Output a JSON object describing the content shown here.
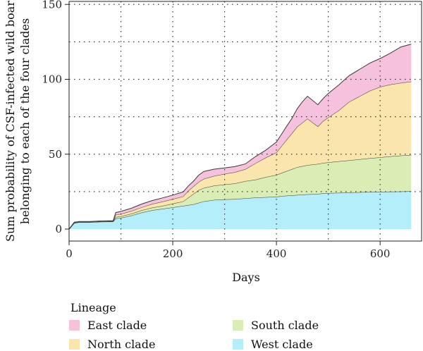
{
  "chart_data": {
    "type": "area",
    "stacked": true,
    "xlabel": "Days",
    "ylabel_line1": "Sum probability of CSF-infected wild boar",
    "ylabel_line2": "belonging to each of the four clades",
    "xlim": [
      0,
      680
    ],
    "ylim": [
      -8,
      152
    ],
    "x_ticks": [
      0,
      200,
      400,
      600
    ],
    "y_ticks": [
      0,
      50,
      100,
      150
    ],
    "grid": true,
    "grid_style": "dotted",
    "x_grid": [
      100,
      200,
      300,
      400,
      500,
      600
    ],
    "y_grid": [
      25,
      50,
      75,
      100,
      125,
      150
    ],
    "legend_title": "Lineage",
    "legend_position": "bottom",
    "x": [
      0,
      10,
      20,
      40,
      60,
      85,
      90,
      100,
      120,
      140,
      160,
      180,
      200,
      220,
      230,
      240,
      250,
      260,
      280,
      300,
      320,
      340,
      360,
      380,
      400,
      410,
      420,
      430,
      440,
      450,
      460,
      480,
      490,
      500,
      520,
      540,
      560,
      580,
      600,
      620,
      640,
      660
    ],
    "series": [
      {
        "name": "West clade",
        "color": "#b3eefa",
        "values": [
          0,
          4,
          4.5,
          4.5,
          4.8,
          5,
          7,
          7.5,
          9,
          11,
          12.5,
          13.5,
          14.5,
          15.5,
          16,
          16.5,
          17.5,
          18.5,
          19.5,
          19.8,
          20,
          20.5,
          21,
          21.3,
          21.6,
          22,
          22.3,
          22.5,
          22.8,
          23,
          23.2,
          23.5,
          23.8,
          24,
          24.2,
          24.4,
          24.6,
          24.8,
          24.9,
          25,
          25.1,
          25.2
        ]
      },
      {
        "name": "South clade",
        "color": "#d9edb5",
        "values": [
          0,
          0.2,
          0.2,
          0.2,
          0.2,
          0.2,
          1,
          1,
          1.2,
          1.5,
          1.8,
          2,
          2.5,
          3,
          5,
          7,
          8.5,
          9,
          9.5,
          10,
          10.5,
          11.5,
          12,
          13.5,
          14.5,
          15.5,
          16.5,
          17.5,
          18.5,
          19,
          19.5,
          20,
          20.3,
          20.5,
          21,
          21.5,
          22,
          22.5,
          23,
          23.5,
          24,
          24.3
        ]
      },
      {
        "name": "North clade",
        "color": "#fae6ad",
        "values": [
          0,
          0.2,
          0.2,
          0.2,
          0.2,
          0.2,
          1.5,
          1.6,
          1.8,
          2,
          2.4,
          2.8,
          3,
          3.3,
          4.5,
          5,
          5.5,
          6,
          6.5,
          7,
          7.5,
          8,
          11,
          13,
          15,
          18,
          21,
          24,
          27,
          29,
          31,
          25,
          28,
          30,
          34,
          39,
          42,
          45,
          47,
          48,
          48.5,
          49
        ]
      },
      {
        "name": "East clade",
        "color": "#f6c1dd",
        "values": [
          0,
          0.2,
          0.2,
          0.2,
          0.2,
          0.2,
          1.5,
          1.7,
          1.9,
          2.2,
          2.3,
          2.5,
          2.7,
          3,
          3.3,
          3.5,
          4.5,
          5,
          4.5,
          4,
          3.8,
          3.5,
          4.5,
          5,
          7,
          8,
          9,
          10,
          12,
          14,
          15,
          14.5,
          15,
          16,
          17,
          17.5,
          18,
          18.5,
          19,
          21,
          24,
          25
        ]
      }
    ]
  }
}
